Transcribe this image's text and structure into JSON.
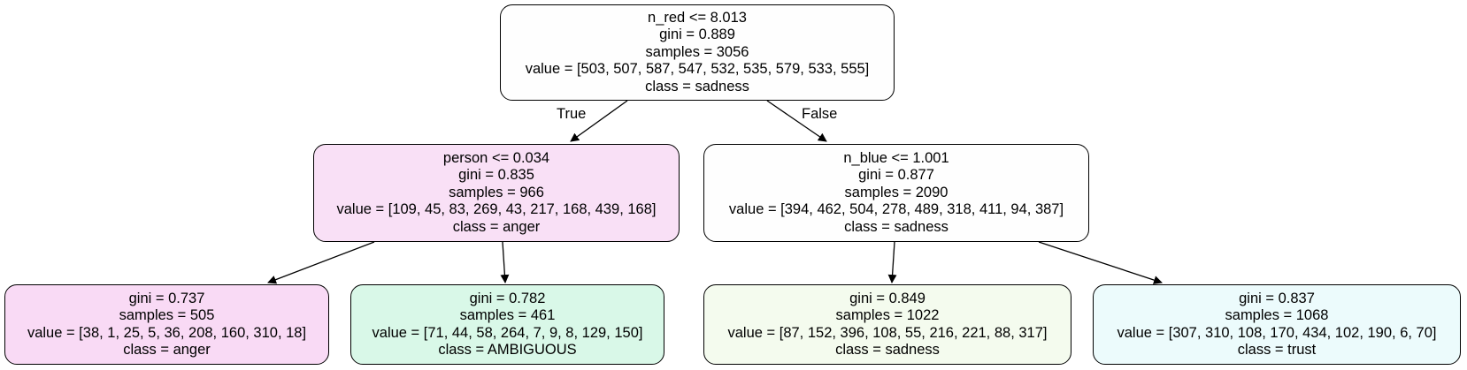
{
  "colors": {
    "node_border": "#000000",
    "edge": "#000000",
    "fill_sadness": "#fefefe",
    "fill_sadness_light": "#f4fbee",
    "fill_anger": "#f9e0f6",
    "fill_anger_leaf": "#f9daf5",
    "fill_ambiguous": "#d9f8e8",
    "fill_trust": "#ecfbfc"
  },
  "edges": {
    "true_label": "True",
    "false_label": "False"
  },
  "nodes": {
    "root": {
      "split": "n_red <= 8.013",
      "gini": "gini = 0.889",
      "samples": "samples = 3056",
      "value": "value = [503, 507, 587, 547, 532, 535, 579, 533, 555]",
      "class": "class = sadness"
    },
    "left": {
      "split": "person <= 0.034",
      "gini": "gini = 0.835",
      "samples": "samples = 966",
      "value": "value = [109, 45, 83, 269, 43, 217, 168, 439, 168]",
      "class": "class = anger"
    },
    "right": {
      "split": "n_blue <= 1.001",
      "gini": "gini = 0.877",
      "samples": "samples = 2090",
      "value": "value = [394, 462, 504, 278, 489, 318, 411, 94, 387]",
      "class": "class = sadness"
    },
    "leaf_ll": {
      "gini": "gini = 0.737",
      "samples": "samples = 505",
      "value": "value = [38, 1, 25, 5, 36, 208, 160, 310, 18]",
      "class": "class = anger"
    },
    "leaf_lr": {
      "gini": "gini = 0.782",
      "samples": "samples = 461",
      "value": "value = [71, 44, 58, 264, 7, 9, 8, 129, 150]",
      "class": "class = AMBIGUOUS"
    },
    "leaf_rl": {
      "gini": "gini = 0.849",
      "samples": "samples = 1022",
      "value": "value = [87, 152, 396, 108, 55, 216, 221, 88, 317]",
      "class": "class = sadness"
    },
    "leaf_rr": {
      "gini": "gini = 0.837",
      "samples": "samples = 1068",
      "value": "value = [307, 310, 108, 170, 434, 102, 190, 6, 70]",
      "class": "class = trust"
    }
  }
}
